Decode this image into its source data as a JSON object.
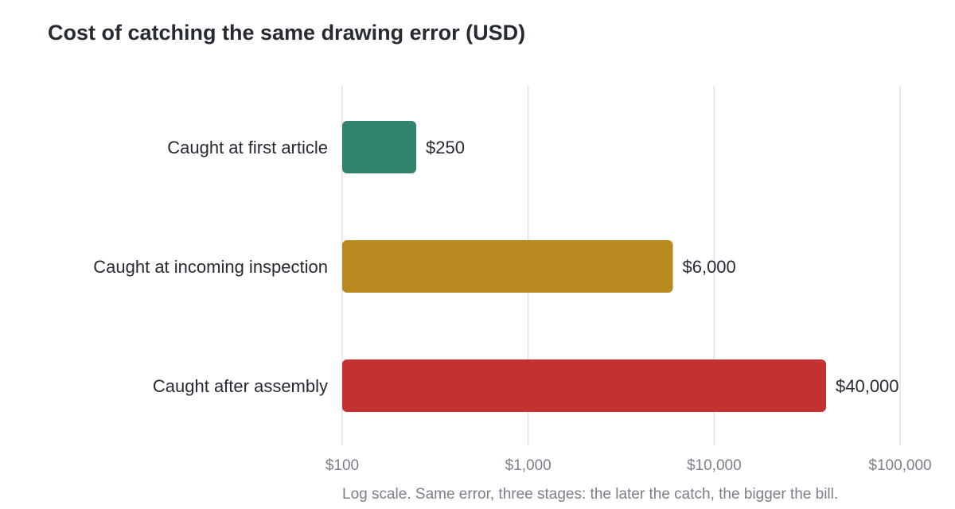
{
  "chart_data": {
    "type": "bar",
    "orientation": "horizontal",
    "title": "Cost of catching the same drawing error (USD)",
    "categories": [
      "Caught at first article",
      "Caught at incoming inspection",
      "Caught after assembly"
    ],
    "values": [
      250,
      6000,
      40000
    ],
    "value_labels": [
      "$250",
      "$6,000",
      "$40,000"
    ],
    "colors": [
      "#31836b",
      "#b8891f",
      "#c43131"
    ],
    "x_scale": "log",
    "xlim": [
      100,
      100000
    ],
    "x_ticks": [
      100,
      1000,
      10000,
      100000
    ],
    "x_tick_labels": [
      "$100",
      "$1,000",
      "$10,000",
      "$100,000"
    ],
    "grid": "vertical",
    "note": "Log scale. Same error, three stages: the later the catch, the bigger the bill."
  }
}
